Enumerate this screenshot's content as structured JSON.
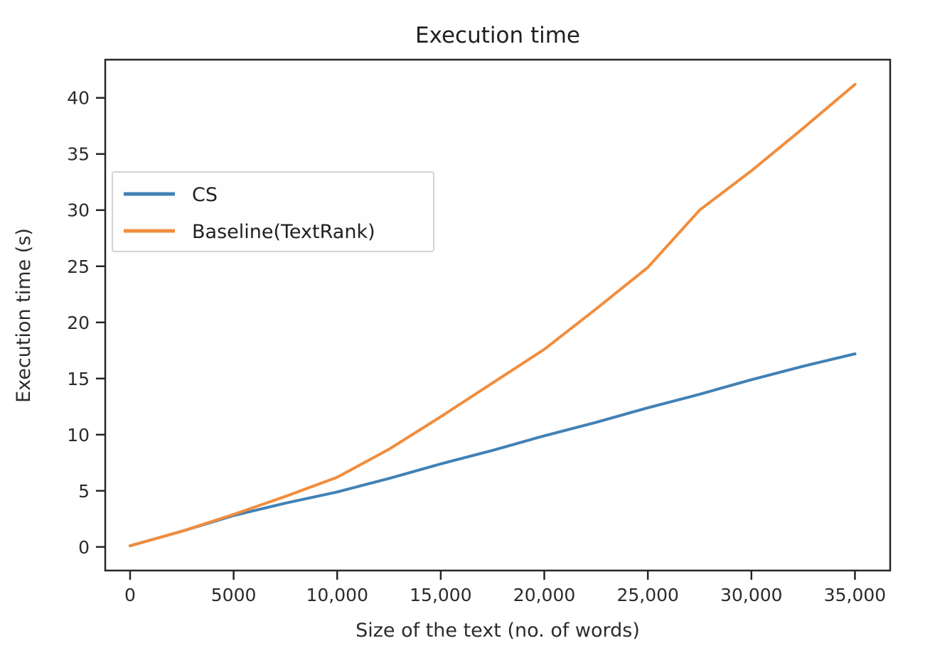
{
  "figure": {
    "background": "#ffffff",
    "frame_color": "#262626",
    "text_color": "#2b2b2b"
  },
  "chart_data": {
    "type": "line",
    "title": "Execution time",
    "xlabel": "Size of the text (no. of words)",
    "ylabel": "Execution time (s)",
    "grid": false,
    "legend_position": "upper left inside",
    "legend_border_color": "#d3d3d3",
    "legend_background": "#fefefe",
    "xlim": [
      -1200,
      36700
    ],
    "ylim": [
      -2.1,
      43.4
    ],
    "x_ticks": [
      0,
      5000,
      10000,
      15000,
      20000,
      25000,
      30000,
      35000
    ],
    "x_tick_labels": [
      "0",
      "5000",
      "10,000",
      "15,000",
      "20,000",
      "25,000",
      "30,000",
      "35,000"
    ],
    "y_ticks": [
      0,
      5,
      10,
      15,
      20,
      25,
      30,
      35,
      40
    ],
    "y_tick_labels": [
      "0",
      "5",
      "10",
      "15",
      "20",
      "25",
      "30",
      "35",
      "40"
    ],
    "x": [
      0,
      2500,
      5000,
      7500,
      10000,
      12500,
      15000,
      17500,
      20000,
      22500,
      25000,
      27500,
      30000,
      32500,
      35000
    ],
    "series": [
      {
        "name": "CS",
        "color": "#4181b5",
        "values": [
          0.1,
          1.4,
          2.8,
          3.9,
          4.9,
          6.1,
          7.4,
          8.6,
          9.9,
          11.1,
          12.4,
          13.6,
          14.9,
          16.1,
          17.2
        ]
      },
      {
        "name": "Baseline(TextRank)",
        "color": "#f18d3d",
        "values": [
          0.1,
          1.4,
          2.9,
          4.5,
          6.2,
          8.7,
          11.6,
          14.6,
          17.6,
          21.2,
          24.9,
          30.0,
          33.5,
          37.3,
          41.2
        ]
      }
    ]
  }
}
